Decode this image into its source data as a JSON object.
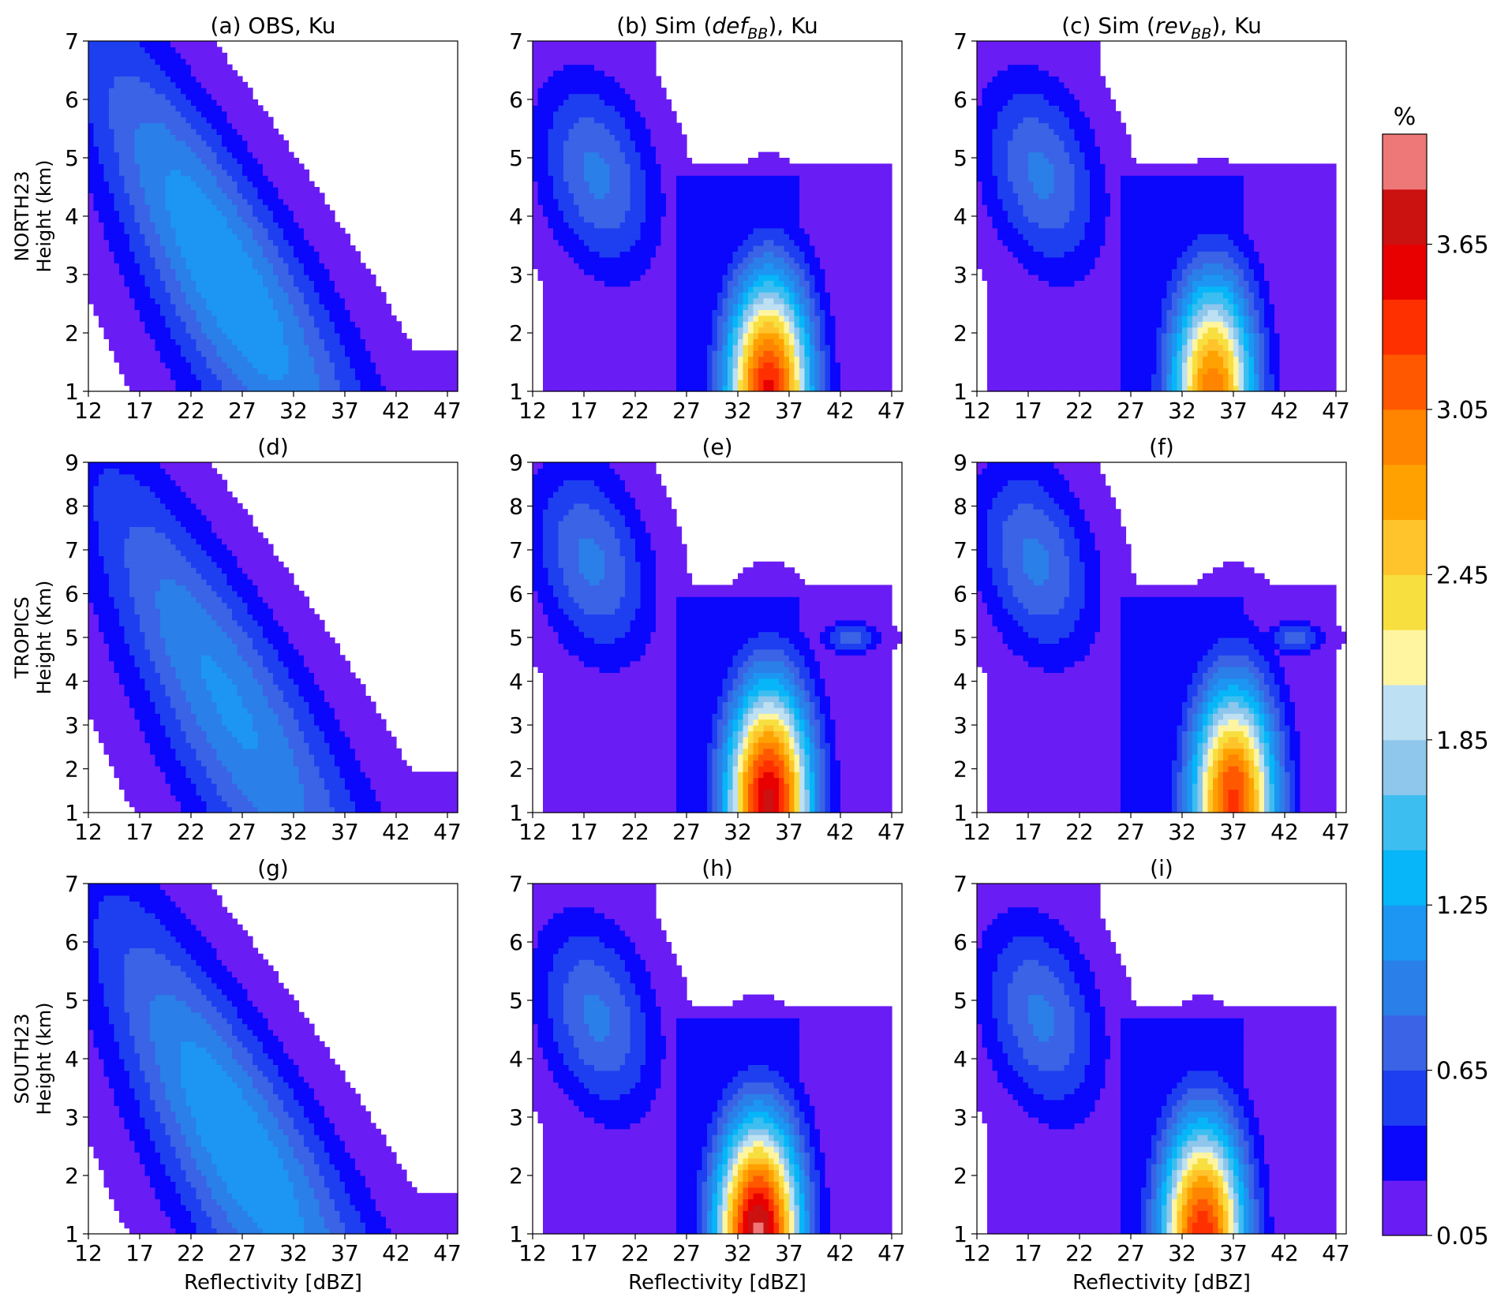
{
  "figure": {
    "colorbar": {
      "unit_label": "%",
      "tick_labels": [
        "0.05",
        "0.65",
        "1.25",
        "1.85",
        "2.45",
        "3.05",
        "3.65"
      ],
      "levels": [
        0.05,
        0.25,
        0.45,
        0.65,
        0.85,
        1.05,
        1.25,
        1.45,
        1.65,
        1.85,
        2.05,
        2.25,
        2.45,
        2.65,
        2.85,
        3.05,
        3.25,
        3.45,
        3.65,
        3.85,
        4.05
      ],
      "colors": [
        "#6a1cf4",
        "#0a07fc",
        "#1e3ff0",
        "#3a63e6",
        "#2a7fe8",
        "#1c96f2",
        "#06b6f8",
        "#3cbef0",
        "#8ec6ec",
        "#bde0f3",
        "#fff5a0",
        "#f8df40",
        "#ffc42b",
        "#ffa100",
        "#ff8400",
        "#ff5800",
        "#ff3000",
        "#e80000",
        "#cc1111",
        "#ee7777"
      ]
    },
    "row_labels": [
      "NORTH23",
      "TROPICS",
      "SOUTH23"
    ]
  },
  "chart_data": [
    {
      "type": "heatmap",
      "panel": "a",
      "title": "(a) OBS, Ku",
      "ylabel": "Height (km)",
      "xlabel": "",
      "row_label": "NORTH23",
      "xlim": [
        12,
        48
      ],
      "ylim": [
        1,
        7
      ],
      "xticks": [
        "12",
        "17",
        "22",
        "27",
        "32",
        "37",
        "42",
        "47"
      ],
      "yticks": [
        "1",
        "2",
        "3",
        "4",
        "5",
        "6",
        "7"
      ],
      "peak": {
        "x": 27,
        "y": 3,
        "value": 1.15
      }
    },
    {
      "type": "heatmap",
      "panel": "b",
      "title": "(b) Sim (def_BB), Ku",
      "title_parts": {
        "prefix": "(b) Sim (",
        "italic": "def",
        "sub": "BB",
        "suffix": "), Ku"
      },
      "ylabel": "",
      "xlabel": "",
      "xlim": [
        12,
        48
      ],
      "ylim": [
        1,
        7
      ],
      "xticks": [
        "12",
        "17",
        "22",
        "27",
        "32",
        "37",
        "42",
        "47"
      ],
      "yticks": [
        "1",
        "2",
        "3",
        "4",
        "5",
        "6",
        "7"
      ],
      "peak": {
        "x": 35,
        "y": 1,
        "value": 3.5
      }
    },
    {
      "type": "heatmap",
      "panel": "c",
      "title": "(c) Sim (rev_BB), Ku",
      "title_parts": {
        "prefix": "(c) Sim (",
        "italic": "rev",
        "sub": "BB",
        "suffix": "), Ku"
      },
      "ylabel": "",
      "xlabel": "",
      "xlim": [
        12,
        48
      ],
      "ylim": [
        1,
        7
      ],
      "xticks": [
        "12",
        "17",
        "22",
        "27",
        "32",
        "37",
        "42",
        "47"
      ],
      "yticks": [
        "1",
        "2",
        "3",
        "4",
        "5",
        "6",
        "7"
      ],
      "peak": {
        "x": 35,
        "y": 1,
        "value": 3.0
      }
    },
    {
      "type": "heatmap",
      "panel": "d",
      "title": "(d)",
      "ylabel": "Height (Km)",
      "xlabel": "",
      "row_label": "TROPICS",
      "xlim": [
        12,
        48
      ],
      "ylim": [
        1,
        9
      ],
      "xticks": [
        "12",
        "17",
        "22",
        "27",
        "32",
        "37",
        "42",
        "47"
      ],
      "yticks": [
        "1",
        "2",
        "3",
        "4",
        "5",
        "6",
        "7",
        "8",
        "9"
      ],
      "peak": {
        "x": 29,
        "y": 3.5,
        "value": 1.0
      }
    },
    {
      "type": "heatmap",
      "panel": "e",
      "title": "(e)",
      "ylabel": "",
      "xlabel": "",
      "xlim": [
        12,
        48
      ],
      "ylim": [
        1,
        9
      ],
      "xticks": [
        "12",
        "17",
        "22",
        "27",
        "32",
        "37",
        "42",
        "47"
      ],
      "yticks": [
        "1",
        "2",
        "3",
        "4",
        "5",
        "6",
        "7",
        "8",
        "9"
      ],
      "peak": {
        "x": 35,
        "y": 1.3,
        "value": 3.7
      }
    },
    {
      "type": "heatmap",
      "panel": "f",
      "title": "(f)",
      "ylabel": "",
      "xlabel": "",
      "xlim": [
        12,
        48
      ],
      "ylim": [
        1,
        9
      ],
      "xticks": [
        "12",
        "17",
        "22",
        "27",
        "32",
        "37",
        "42",
        "47"
      ],
      "yticks": [
        "1",
        "2",
        "3",
        "4",
        "5",
        "6",
        "7",
        "8",
        "9"
      ],
      "peak": {
        "x": 37,
        "y": 1.3,
        "value": 3.3
      }
    },
    {
      "type": "heatmap",
      "panel": "g",
      "title": "(g)",
      "ylabel": "Height (km)",
      "xlabel": "Reflectivity [dBZ]",
      "row_label": "SOUTH23",
      "xlim": [
        12,
        48
      ],
      "ylim": [
        1,
        7
      ],
      "xticks": [
        "12",
        "17",
        "22",
        "27",
        "32",
        "37",
        "42",
        "47"
      ],
      "yticks": [
        "1",
        "2",
        "3",
        "4",
        "5",
        "6",
        "7"
      ],
      "peak": {
        "x": 27,
        "y": 2.5,
        "value": 1.15
      }
    },
    {
      "type": "heatmap",
      "panel": "h",
      "title": "(h)",
      "ylabel": "",
      "xlabel": "Reflectivity [dBZ]",
      "xlim": [
        12,
        48
      ],
      "ylim": [
        1,
        7
      ],
      "xticks": [
        "12",
        "17",
        "22",
        "27",
        "32",
        "37",
        "42",
        "47"
      ],
      "yticks": [
        "1",
        "2",
        "3",
        "4",
        "5",
        "6",
        "7"
      ],
      "peak": {
        "x": 34,
        "y": 1,
        "value": 3.9
      }
    },
    {
      "type": "heatmap",
      "panel": "i",
      "title": "(i)",
      "ylabel": "",
      "xlabel": "Reflectivity [dBZ]",
      "xlim": [
        12,
        48
      ],
      "ylim": [
        1,
        7
      ],
      "xticks": [
        "12",
        "17",
        "22",
        "27",
        "32",
        "37",
        "42",
        "47"
      ],
      "yticks": [
        "1",
        "2",
        "3",
        "4",
        "5",
        "6",
        "7"
      ],
      "peak": {
        "x": 34,
        "y": 1,
        "value": 3.4
      }
    }
  ]
}
